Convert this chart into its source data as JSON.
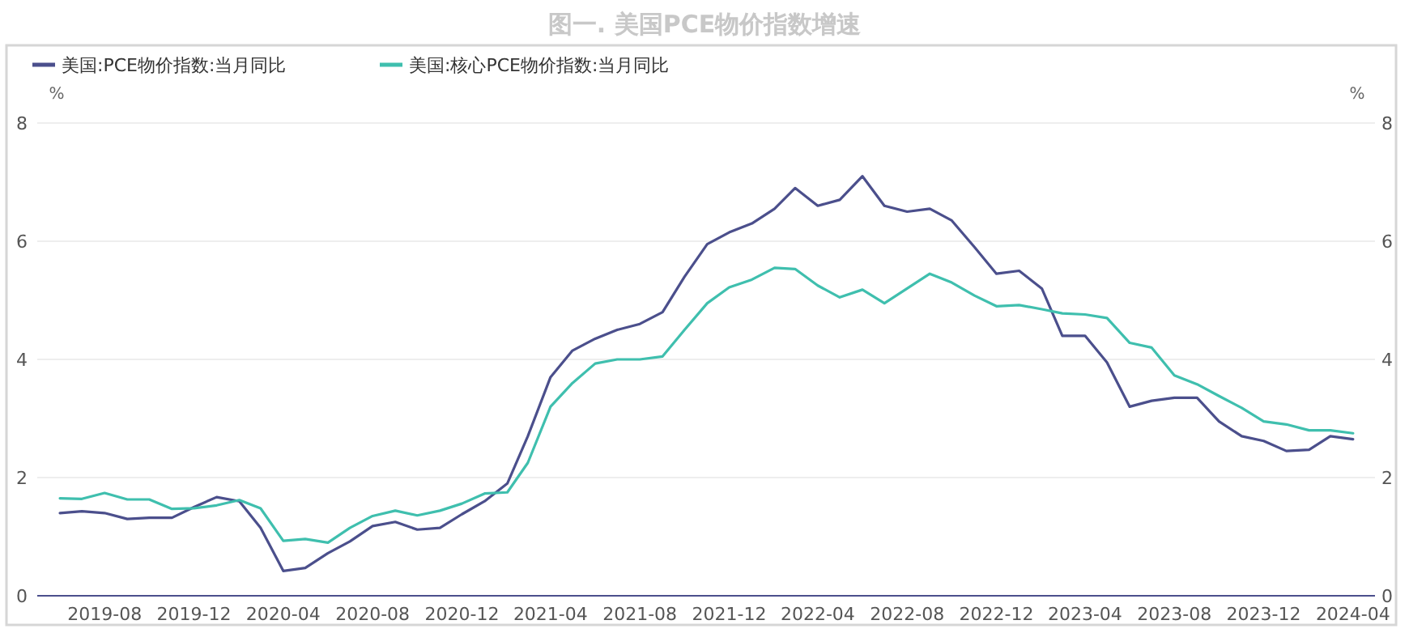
{
  "chart_data": {
    "type": "line",
    "title": "图一. 美国PCE物价指数增速",
    "x": [
      "2019-06",
      "2019-07",
      "2019-08",
      "2019-09",
      "2019-10",
      "2019-11",
      "2019-12",
      "2020-01",
      "2020-02",
      "2020-03",
      "2020-04",
      "2020-05",
      "2020-06",
      "2020-07",
      "2020-08",
      "2020-09",
      "2020-10",
      "2020-11",
      "2020-12",
      "2021-01",
      "2021-02",
      "2021-03",
      "2021-04",
      "2021-05",
      "2021-06",
      "2021-07",
      "2021-08",
      "2021-09",
      "2021-10",
      "2021-11",
      "2021-12",
      "2022-01",
      "2022-02",
      "2022-03",
      "2022-04",
      "2022-05",
      "2022-06",
      "2022-07",
      "2022-08",
      "2022-09",
      "2022-10",
      "2022-11",
      "2022-12",
      "2023-01",
      "2023-02",
      "2023-03",
      "2023-04",
      "2023-05",
      "2023-06",
      "2023-07",
      "2023-08",
      "2023-09",
      "2023-10",
      "2023-11",
      "2023-12",
      "2024-01",
      "2024-02",
      "2024-03",
      "2024-04"
    ],
    "series": [
      {
        "name": "美国:PCE物价指数:当月同比",
        "color": "#4b4f8c",
        "values": [
          1.4,
          1.43,
          1.4,
          1.3,
          1.32,
          1.32,
          1.5,
          1.67,
          1.6,
          1.15,
          0.42,
          0.47,
          0.72,
          0.92,
          1.18,
          1.25,
          1.12,
          1.15,
          1.38,
          1.6,
          1.9,
          2.7,
          3.7,
          4.15,
          4.35,
          4.5,
          4.6,
          4.8,
          5.4,
          5.95,
          6.15,
          6.3,
          6.55,
          6.9,
          6.6,
          6.7,
          7.1,
          6.6,
          6.5,
          6.55,
          6.35,
          5.9,
          5.45,
          5.5,
          5.2,
          4.4,
          4.4,
          3.95,
          3.2,
          3.3,
          3.35,
          3.35,
          2.95,
          2.7,
          2.62,
          2.45,
          2.47,
          2.7,
          2.65
        ]
      },
      {
        "name": "美国:核心PCE物价指数:当月同比",
        "color": "#3fbfae",
        "values": [
          1.65,
          1.64,
          1.74,
          1.63,
          1.63,
          1.47,
          1.48,
          1.53,
          1.62,
          1.48,
          0.93,
          0.96,
          0.9,
          1.15,
          1.35,
          1.44,
          1.36,
          1.44,
          1.56,
          1.73,
          1.75,
          2.25,
          3.2,
          3.6,
          3.93,
          4.0,
          4.0,
          4.05,
          4.5,
          4.95,
          5.22,
          5.35,
          5.55,
          5.53,
          5.25,
          5.05,
          5.18,
          4.95,
          5.2,
          5.45,
          5.3,
          5.08,
          4.9,
          4.92,
          4.85,
          4.78,
          4.76,
          4.7,
          4.28,
          4.2,
          3.73,
          3.58,
          3.38,
          3.18,
          2.95,
          2.9,
          2.8,
          2.8,
          2.75
        ]
      }
    ],
    "xlim": [
      "2019-05",
      "2024-05"
    ],
    "xticks": [
      "2019-08",
      "2019-12",
      "2020-04",
      "2020-08",
      "2020-12",
      "2021-04",
      "2021-08",
      "2021-12",
      "2022-04",
      "2022-08",
      "2022-12",
      "2023-04",
      "2023-08",
      "2023-12",
      "2024-04"
    ],
    "ylabel": "%",
    "y2label": "%",
    "ylim": [
      0,
      8
    ],
    "yticks": [
      0,
      2,
      4,
      6,
      8
    ],
    "y2lim": [
      0,
      8
    ],
    "y2ticks": [
      0,
      2,
      4,
      6,
      8
    ],
    "grid": "y",
    "legend": "top left",
    "marker": "none",
    "line_style": "solid"
  }
}
